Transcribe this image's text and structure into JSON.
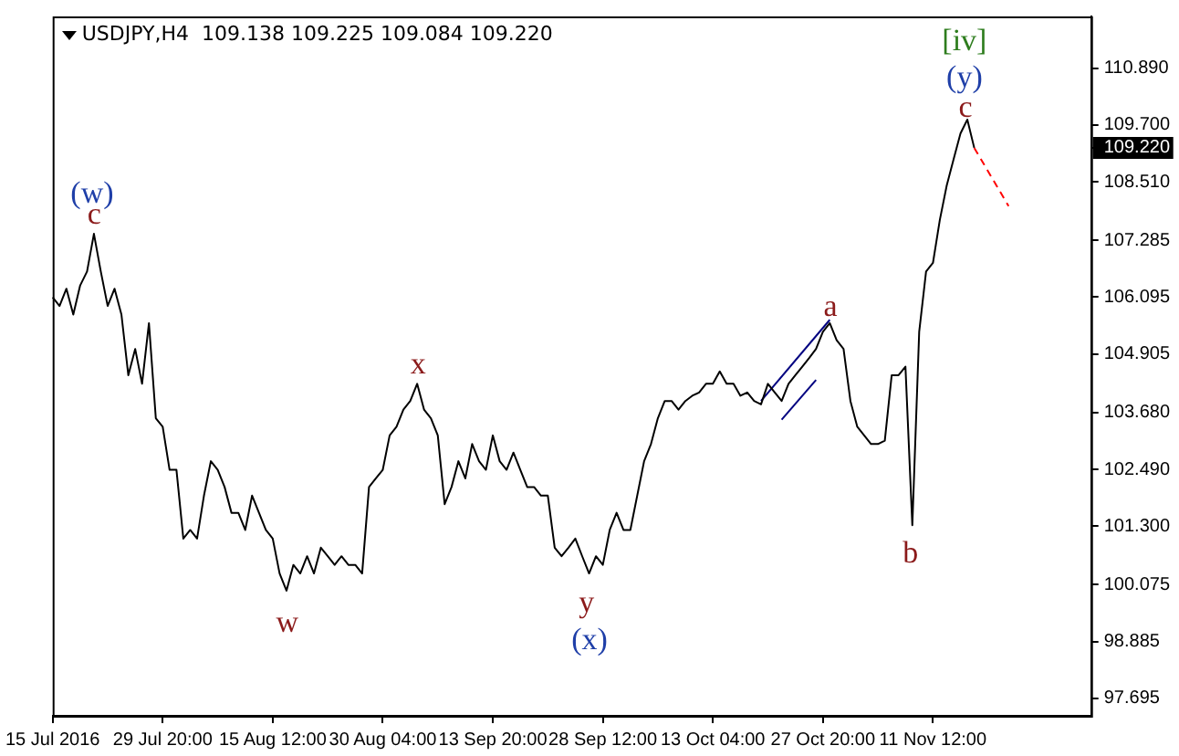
{
  "chart_data": {
    "type": "line",
    "title": "USDJPY,H4  109.138 109.225 109.084 109.220",
    "categories": [
      "15 Jul 2016",
      null,
      null,
      null,
      null,
      null,
      null,
      null,
      null,
      null,
      null,
      null,
      null,
      null,
      null,
      null,
      "29 Jul 20:00",
      null,
      null,
      null,
      null,
      null,
      null,
      null,
      null,
      null,
      null,
      null,
      null,
      null,
      null,
      null,
      "15 Aug 12:00",
      null,
      null,
      null,
      null,
      null,
      null,
      null,
      null,
      null,
      null,
      null,
      null,
      null,
      null,
      null,
      "30 Aug 04:00",
      null,
      null,
      null,
      null,
      null,
      null,
      null,
      null,
      null,
      null,
      null,
      null,
      null,
      null,
      null,
      "13 Sep 20:00",
      null,
      null,
      null,
      null,
      null,
      null,
      null,
      null,
      null,
      null,
      null,
      null,
      null,
      null,
      null,
      "28 Sep 12:00",
      null,
      null,
      null,
      null,
      null,
      null,
      null,
      null,
      null,
      null,
      null,
      null,
      null,
      null,
      null,
      "13 Oct 04:00",
      null,
      null,
      null,
      null,
      null,
      null,
      null,
      null,
      null,
      null,
      null,
      null,
      null,
      null,
      null,
      "27 Oct 20:00",
      null,
      null,
      null,
      null,
      null,
      null,
      null,
      null,
      null,
      null,
      null,
      null,
      null,
      null,
      null,
      "11 Nov 12:00",
      null,
      null,
      null,
      null,
      null,
      null,
      null,
      null,
      null,
      null,
      null,
      null,
      null,
      null,
      null,
      null,
      null,
      null,
      null,
      null,
      null,
      null,
      null
    ],
    "ylim": [
      97.33,
      111.97
    ],
    "yticks": [
      {
        "value": 110.89,
        "label": "110.890"
      },
      {
        "value": 109.7,
        "label": "109.700"
      },
      {
        "value": 109.22,
        "label": "109.220"
      },
      {
        "value": 108.51,
        "label": "108.510"
      },
      107.285,
      106.095,
      104.905,
      {
        "value": 103.68,
        "label": "103.680"
      },
      {
        "value": 102.49,
        "label": "102.490"
      },
      {
        "value": 101.3,
        "label": "101.300"
      },
      100.075,
      98.885,
      97.695
    ],
    "grid": false,
    "legend": false,
    "marker": "none",
    "series": [
      {
        "color": "#000000",
        "line_style": "solid",
        "values": [
          106.09,
          105.91,
          106.27,
          105.73,
          106.34,
          106.63,
          107.42,
          106.63,
          105.91,
          106.27,
          105.73,
          104.46,
          105.01,
          104.28,
          105.55,
          103.56,
          103.38,
          102.48,
          102.48,
          101.04,
          101.22,
          101.04,
          101.94,
          102.66,
          102.48,
          102.12,
          101.58,
          101.58,
          101.22,
          101.94,
          101.58,
          101.22,
          101.04,
          100.31,
          99.95,
          100.49,
          100.31,
          100.67,
          100.31,
          100.85,
          100.67,
          100.49,
          100.67,
          100.49,
          100.49,
          100.31,
          102.12,
          102.3,
          102.48,
          103.2,
          103.38,
          103.74,
          103.92,
          104.28,
          103.74,
          103.56,
          103.2,
          101.76,
          102.12,
          102.66,
          102.3,
          103.02,
          102.66,
          102.48,
          103.2,
          102.66,
          102.48,
          102.84,
          102.48,
          102.12,
          102.12,
          101.94,
          101.94,
          100.85,
          100.67,
          100.85,
          101.04,
          100.67,
          100.31,
          100.67,
          100.49,
          101.22,
          101.58,
          101.22,
          101.22,
          101.94,
          102.66,
          103.02,
          103.56,
          103.92,
          103.92,
          103.74,
          103.92,
          104.03,
          104.1,
          104.28,
          104.28,
          104.54,
          104.28,
          104.28,
          104.03,
          104.1,
          103.92,
          103.85,
          104.28,
          104.1,
          103.92,
          104.28,
          104.46,
          104.64,
          104.82,
          105.01,
          105.37,
          105.55,
          105.19,
          105.01,
          103.92,
          103.38,
          103.2,
          103.02,
          103.02,
          103.09,
          104.46,
          104.46,
          104.64,
          101.32,
          105.37,
          106.63,
          106.81,
          107.71,
          108.43,
          108.98,
          109.52,
          109.81,
          109.22,
          null,
          null,
          null,
          null,
          null,
          null,
          null,
          null,
          null,
          null,
          null,
          null,
          null,
          null,
          null,
          null,
          null
        ]
      },
      {
        "color": "#000080",
        "line_style": "solid",
        "values": [
          null,
          null,
          null,
          null,
          null,
          null,
          null,
          null,
          null,
          null,
          null,
          null,
          null,
          null,
          null,
          null,
          null,
          null,
          null,
          null,
          null,
          null,
          null,
          null,
          null,
          null,
          null,
          null,
          null,
          null,
          null,
          null,
          null,
          null,
          null,
          null,
          null,
          null,
          null,
          null,
          null,
          null,
          null,
          null,
          null,
          null,
          null,
          null,
          null,
          null,
          null,
          null,
          null,
          null,
          null,
          null,
          null,
          null,
          null,
          null,
          null,
          null,
          null,
          null,
          null,
          null,
          null,
          null,
          null,
          null,
          null,
          null,
          null,
          null,
          null,
          null,
          null,
          null,
          null,
          null,
          null,
          null,
          null,
          null,
          null,
          null,
          null,
          null,
          null,
          null,
          null,
          null,
          null,
          null,
          null,
          null,
          null,
          null,
          null,
          null,
          null,
          null,
          null,
          103.92,
          null,
          null,
          null,
          null,
          null,
          null,
          null,
          null,
          null,
          105.62,
          null,
          null,
          null,
          null,
          null,
          null,
          null,
          null,
          null,
          null,
          null,
          null,
          null,
          null,
          null,
          null,
          null,
          null,
          null,
          null,
          null,
          null,
          null,
          null,
          null,
          null,
          null,
          null,
          null,
          null,
          null,
          null,
          null,
          null,
          null,
          null,
          null,
          null
        ]
      },
      {
        "color": "#000080",
        "line_style": "solid",
        "values": [
          null,
          null,
          null,
          null,
          null,
          null,
          null,
          null,
          null,
          null,
          null,
          null,
          null,
          null,
          null,
          null,
          null,
          null,
          null,
          null,
          null,
          null,
          null,
          null,
          null,
          null,
          null,
          null,
          null,
          null,
          null,
          null,
          null,
          null,
          null,
          null,
          null,
          null,
          null,
          null,
          null,
          null,
          null,
          null,
          null,
          null,
          null,
          null,
          null,
          null,
          null,
          null,
          null,
          null,
          null,
          null,
          null,
          null,
          null,
          null,
          null,
          null,
          null,
          null,
          null,
          null,
          null,
          null,
          null,
          null,
          null,
          null,
          null,
          null,
          null,
          null,
          null,
          null,
          null,
          null,
          null,
          null,
          null,
          null,
          null,
          null,
          null,
          null,
          null,
          null,
          null,
          null,
          null,
          null,
          null,
          null,
          null,
          null,
          null,
          null,
          null,
          null,
          null,
          null,
          null,
          null,
          103.53,
          null,
          null,
          null,
          null,
          104.36,
          null,
          null,
          null,
          null,
          null,
          null,
          null,
          null,
          null,
          null,
          null,
          null,
          null,
          null,
          null,
          null,
          null,
          null,
          null,
          null,
          null,
          null,
          null,
          null,
          null,
          null,
          null,
          null,
          null,
          null,
          null,
          null,
          null,
          null,
          null,
          null,
          null,
          null,
          null,
          null
        ]
      },
      {
        "color": "#ff0000",
        "line_style": "dashed",
        "values": [
          null,
          null,
          null,
          null,
          null,
          null,
          null,
          null,
          null,
          null,
          null,
          null,
          null,
          null,
          null,
          null,
          null,
          null,
          null,
          null,
          null,
          null,
          null,
          null,
          null,
          null,
          null,
          null,
          null,
          null,
          null,
          null,
          null,
          null,
          null,
          null,
          null,
          null,
          null,
          null,
          null,
          null,
          null,
          null,
          null,
          null,
          null,
          null,
          null,
          null,
          null,
          null,
          null,
          null,
          null,
          null,
          null,
          null,
          null,
          null,
          null,
          null,
          null,
          null,
          null,
          null,
          null,
          null,
          null,
          null,
          null,
          null,
          null,
          null,
          null,
          null,
          null,
          null,
          null,
          null,
          null,
          null,
          null,
          null,
          null,
          null,
          null,
          null,
          null,
          null,
          null,
          null,
          null,
          null,
          null,
          null,
          null,
          null,
          null,
          null,
          null,
          null,
          null,
          null,
          null,
          null,
          null,
          null,
          null,
          null,
          null,
          null,
          null,
          null,
          null,
          null,
          null,
          null,
          null,
          null,
          null,
          null,
          null,
          null,
          null,
          null,
          null,
          null,
          null,
          null,
          null,
          null,
          null,
          null,
          109.22,
          null,
          null,
          null,
          null,
          108.0,
          null,
          null,
          null,
          null,
          null,
          null,
          null,
          null,
          null,
          null,
          null,
          null
        ]
      }
    ],
    "annotations": [
      "(w)",
      "c",
      "x",
      "w",
      "y",
      "(x)",
      "a",
      "b",
      "c",
      "(y)",
      "[iv]"
    ]
  }
}
